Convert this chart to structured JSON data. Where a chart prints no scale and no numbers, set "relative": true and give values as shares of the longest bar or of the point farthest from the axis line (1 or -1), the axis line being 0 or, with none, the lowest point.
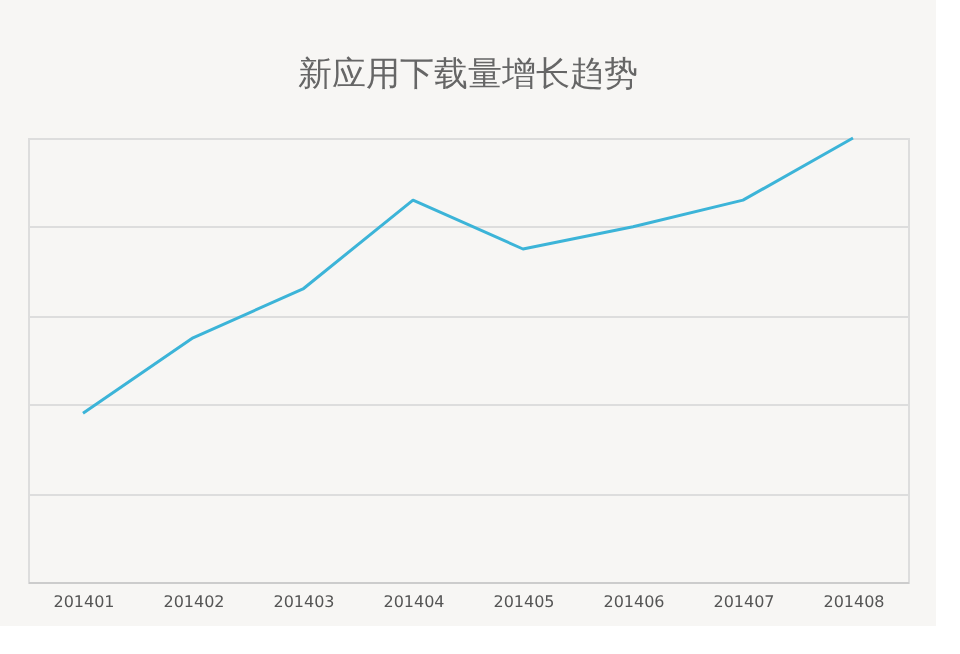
{
  "chart_data": {
    "type": "line",
    "title": "新应用下载量增长趋势",
    "categories": [
      "201401",
      "201402",
      "201403",
      "201404",
      "201405",
      "201406",
      "201407",
      "201408"
    ],
    "series": [
      {
        "color": "#3cb4d8",
        "values": [
          0.38,
          0.55,
          0.66,
          0.86,
          0.75,
          0.8,
          0.86,
          1
        ]
      }
    ],
    "relative": true,
    "grid": "y",
    "marker": "none",
    "line_style": "solid"
  }
}
